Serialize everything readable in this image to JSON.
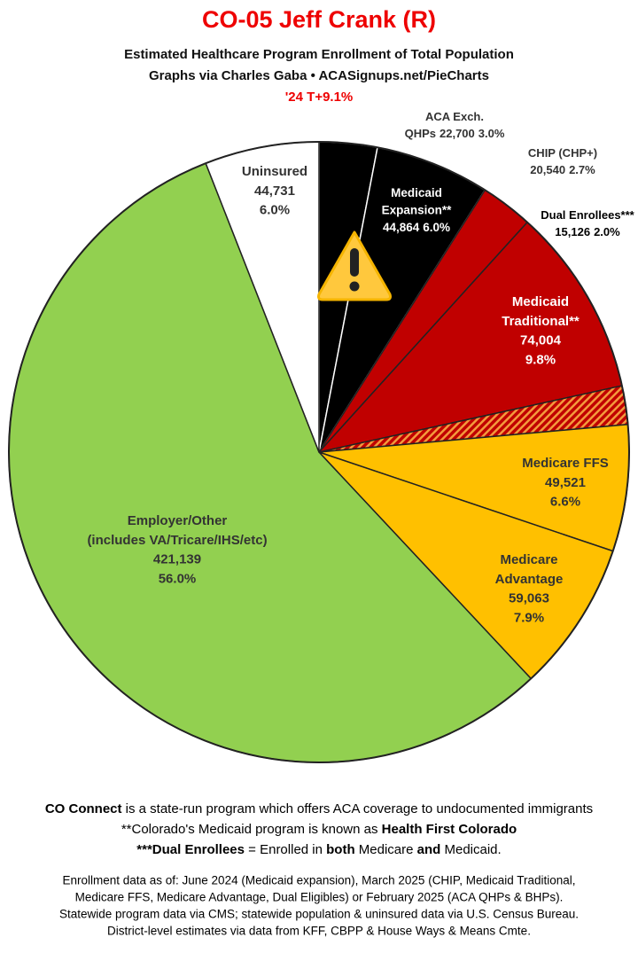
{
  "chart_data": {
    "type": "pie",
    "title": "CO-05 Jeff Crank (R)",
    "subtitle": [
      "Estimated Healthcare Program Enrollment of Total Population",
      "Graphs via Charles Gaba   •   ACASignups.net/PieCharts"
    ],
    "annotation": "'24 T+9.1%",
    "categories": [
      [
        "ACA Exch.",
        "QHPs"
      ],
      [
        "Medicaid",
        "Expansion**"
      ],
      [
        "CHIP (CHP+)"
      ],
      [
        "Medicaid",
        "Traditional**"
      ],
      [
        "Dual Enrollees***"
      ],
      [
        "Medicare FFS"
      ],
      [
        "Medicare",
        "Advantage"
      ],
      [
        "Employer/Other",
        "(includes VA/Tricare/IHS/etc)"
      ],
      [
        "Uninsured"
      ]
    ],
    "values": [
      22700,
      44864,
      20540,
      74004,
      15126,
      49521,
      59063,
      421139,
      44731
    ],
    "value_labels": [
      "22,700",
      "44,864",
      "20,540",
      "74,004",
      "15,126",
      "49,521",
      "59,063",
      "421,139",
      "44,731"
    ],
    "percents": [
      3.0,
      6.0,
      2.7,
      9.8,
      2.0,
      6.6,
      7.9,
      56.0,
      6.0
    ],
    "percent_labels": [
      "3.0%",
      "6.0%",
      "2.7%",
      "9.8%",
      "2.0%",
      "6.6%",
      "7.9%",
      "56.0%",
      "6.0%"
    ],
    "colors": [
      "#000000",
      "#000000",
      "#c00000",
      "#c00000",
      "#c00000",
      "#ffc000",
      "#ffc000",
      "#92d050",
      "#ffffff"
    ],
    "hatched": [
      false,
      false,
      false,
      false,
      true,
      false,
      false,
      false,
      false
    ],
    "hatch_color": "#f39a3c",
    "notes": [
      [
        {
          "text": "CO Connect",
          "bold": true
        },
        {
          "text": " is a state-run program which offers ACA coverage to undocumented immigrants"
        }
      ],
      [
        {
          "text": "**Colorado's Medicaid program is known as "
        },
        {
          "text": "Health First Colorado",
          "bold": true
        }
      ],
      [
        {
          "text": "***Dual Enrollees",
          "bold": true
        },
        {
          "text": " = Enrolled in "
        },
        {
          "text": "both",
          "bold": true
        },
        {
          "text": " Medicare "
        },
        {
          "text": "and",
          "bold": true
        },
        {
          "text": " Medicaid."
        }
      ]
    ],
    "sources": [
      "Enrollment data as of: June 2024 (Medicaid expansion), March 2025 (CHIP, Medicaid Traditional,",
      "Medicare FFS, Medicare Advantage, Dual Eligibles) or February 2025 (ACA QHPs & BHPs).",
      "Statewide program data via CMS; statewide population & uninsured data via U.S. Census Bureau.",
      "District-level estimates via data from KFF, CBPP & House Ways & Means Cmte."
    ]
  }
}
